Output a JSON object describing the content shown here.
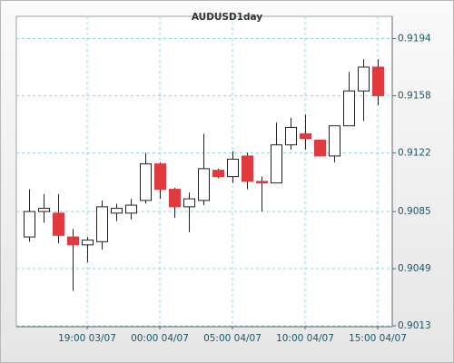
{
  "chart_data": {
    "type": "candlestick",
    "title": "AUDUSD1day",
    "categories": [
      null,
      null,
      null,
      null,
      "19:00 03/07",
      null,
      null,
      null,
      null,
      "00:00 04/07",
      null,
      null,
      null,
      null,
      "05:00 04/07",
      null,
      null,
      null,
      null,
      "10:00 04/07",
      null,
      null,
      null,
      null,
      "15:00 04/07"
    ],
    "open": [
      0.9069,
      0.9085,
      0.9084,
      0.9069,
      0.9064,
      0.9066,
      0.9084,
      0.9084,
      0.9092,
      0.9115,
      0.9099,
      0.9088,
      0.9092,
      0.9111,
      0.9107,
      0.912,
      0.9104,
      0.9103,
      0.9127,
      0.9134,
      0.913,
      0.912,
      0.9139,
      0.9161,
      0.9176
    ],
    "high": [
      0.9099,
      0.9096,
      0.9096,
      0.9074,
      0.9069,
      0.9092,
      0.909,
      0.9093,
      0.9122,
      0.9116,
      0.91,
      0.9097,
      0.9134,
      0.9112,
      0.9123,
      0.9122,
      0.9107,
      0.9141,
      0.9144,
      0.9146,
      0.913,
      0.9139,
      0.9173,
      0.9181,
      0.9181
    ],
    "low": [
      0.9066,
      0.9078,
      0.9065,
      0.9035,
      0.9053,
      0.9061,
      0.9079,
      0.908,
      0.909,
      0.9093,
      0.9081,
      0.9072,
      0.9089,
      0.9106,
      0.9103,
      0.9099,
      0.9085,
      0.9103,
      0.9124,
      0.9124,
      0.912,
      0.9116,
      0.9139,
      0.9142,
      0.9152
    ],
    "close": [
      0.9085,
      0.9087,
      0.907,
      0.9064,
      0.9067,
      0.9088,
      0.9087,
      0.9089,
      0.9115,
      0.9099,
      0.9088,
      0.9093,
      0.9112,
      0.9107,
      0.9118,
      0.9104,
      0.9103,
      0.9127,
      0.9138,
      0.9131,
      0.912,
      0.9139,
      0.9161,
      0.9176,
      0.9158
    ],
    "up_color": "#ffffff",
    "down_color": "#e0393e",
    "ylim": [
      0.9013,
      0.9208
    ],
    "yticks": [
      0.9013,
      0.9049,
      0.9085,
      0.9122,
      0.9158,
      0.9194
    ],
    "grid": true
  }
}
